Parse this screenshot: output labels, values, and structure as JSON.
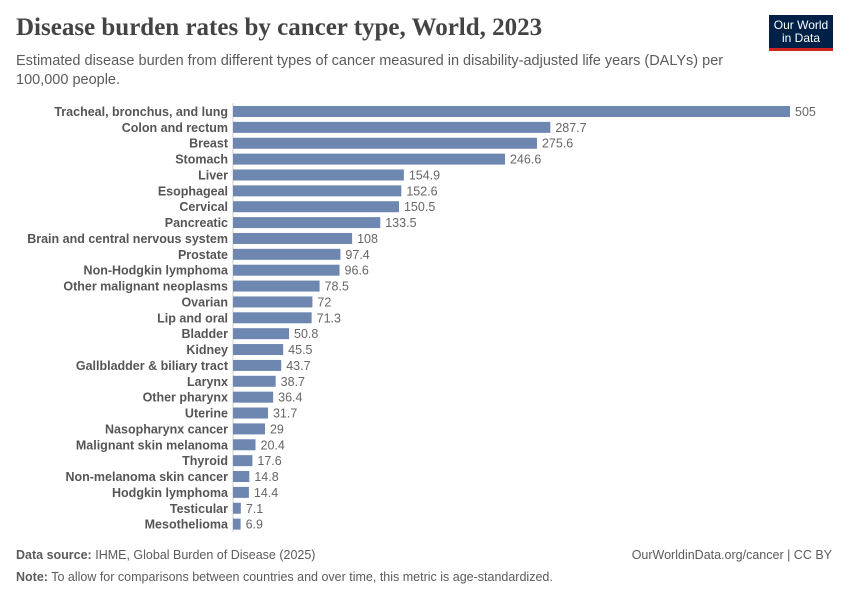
{
  "header": {
    "title": "Disease burden rates by cancer type, World, 2023",
    "subtitle": "Estimated disease burden from different types of cancer measured in disability-adjusted life years (DALYs) per 100,000 people.",
    "logo_text": "Our World in Data"
  },
  "chart_data": {
    "type": "bar",
    "orientation": "horizontal",
    "title": "Disease burden rates by cancer type, World, 2023",
    "categories": [
      "Tracheal, bronchus, and lung",
      "Colon and rectum",
      "Breast",
      "Stomach",
      "Liver",
      "Esophageal",
      "Cervical",
      "Pancreatic",
      "Brain and central nervous system",
      "Prostate",
      "Non-Hodgkin lymphoma",
      "Other malignant neoplasms",
      "Ovarian",
      "Lip and oral",
      "Bladder",
      "Kidney",
      "Gallbladder & biliary tract",
      "Larynx",
      "Other pharynx",
      "Uterine",
      "Nasopharynx cancer",
      "Malignant skin melanoma",
      "Thyroid",
      "Non-melanoma skin cancer",
      "Hodgkin lymphoma",
      "Testicular",
      "Mesothelioma"
    ],
    "values": [
      505,
      287.7,
      275.6,
      246.6,
      154.9,
      152.6,
      150.5,
      133.5,
      108,
      97.4,
      96.6,
      78.5,
      72,
      71.3,
      50.8,
      45.5,
      43.7,
      38.7,
      36.4,
      31.7,
      29,
      20.4,
      17.6,
      14.8,
      14.4,
      7.1,
      6.9
    ],
    "xlim": [
      0,
      505
    ],
    "grid": false,
    "bar_color": "#6d87b0"
  },
  "footer": {
    "source_label": "Data source:",
    "source": "IHME, Global Burden of Disease (2025)",
    "url": "OurWorldinData.org/cancer | CC BY",
    "note_label": "Note:",
    "note": "To allow for comparisons between countries and over time, this metric is age-standardized."
  }
}
